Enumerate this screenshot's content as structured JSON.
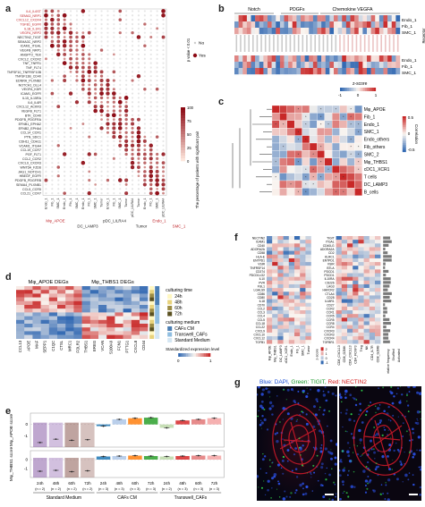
{
  "panels": {
    "a": "a",
    "b": "b",
    "c": "c",
    "d": "d",
    "e": "e",
    "f": "f",
    "g": "g"
  },
  "panel_a": {
    "pairs_red": [
      "IL6_IL6ST",
      "SEMA3_NRP1",
      "CXCL12_CXCR4",
      "TGFB1_EGFR",
      "IL1B_IL1R1",
      "VEGFA_NRP2"
    ],
    "pairs_black": [
      "NECTIN2_TIGIT",
      "SEMA3C_NRP2",
      "ICAM1_ITGAL",
      "VEGFB_NRP1",
      "ANGPT2_TEK",
      "CXCL2_CXCR2",
      "TNF_TNFR1",
      "TNF_FLT4",
      "TNFSF10_TNFRSF10B",
      "TNFSF13B_CD40",
      "EDNRA_PLXNB2",
      "NOTCH1_DLL4",
      "VEGFA_KDR",
      "ICAM1_EGFR",
      "IL15_IL15RA",
      "IL6_IL6R",
      "CXCL12_ACKR3",
      "VEGFB_FLT1",
      "BTK_CD40",
      "PDGFB_PDGFRA",
      "EFNB1_EPHA2",
      "EFNB2_EPHA4",
      "CCL14_CCR1",
      "PTN_SDC1",
      "CDH11_CDH11",
      "VCAM1_ITGA4",
      "CCL19_CCR7",
      "PGF_FLT1",
      "CCL2_CCR2",
      "CXCL9_CXCR3",
      "WNT5A_FZD6",
      "JAG1_NOTCH1",
      "HBEGF_EGFR",
      "PDGFB_PDGFRB",
      "SEMA4_PLXNB1",
      "CCL5_CCR5",
      "CCL21_CCR7"
    ],
    "xlabels": [
      "Endo_1",
      "Fib_1",
      "SMC_1",
      "Endo_1",
      "Fib_1",
      "SMC_1",
      "Endo_1",
      "Fib_1",
      "SMC_1",
      "Tumor",
      "Endo_1",
      "Fib_1",
      "SMC_1",
      "Tumor",
      "pDC_LILRA4",
      "Tumor",
      "Endo_1",
      "Fib_1",
      "SMC_1",
      "pDC_LILRA4"
    ],
    "groups": [
      "Mφ_APOE",
      "DC_LAMP3",
      "pDC_LILRA4",
      "Tumor",
      "Endo_1",
      "SMC_1"
    ],
    "colorbar_label": "The percentage of patients with significant pair",
    "colorbar_ticks": [
      "100",
      "75",
      "50",
      "25",
      "0"
    ],
    "pvalue_label": "p value < 0.01",
    "legend": [
      "No",
      "Yes"
    ]
  },
  "panel_b": {
    "groups": [
      "Notch",
      "PDGFs",
      "Chemokine VEGFA"
    ],
    "rows": [
      "Endo_1",
      "Fib_1",
      "SMC_1"
    ],
    "side_labels": [
      "Receptor",
      "Ligand"
    ],
    "zscore_label": "z-score",
    "zscore_ticks": [
      "-1",
      "0",
      "1"
    ]
  },
  "panel_c": {
    "rows": [
      "Mφ_APOE",
      "Fib_1",
      "Endo_1",
      "SMC_1",
      "Endo_others",
      "Fib_others",
      "SMC_2",
      "Mφ_THBS1",
      "cDC1_XCR1",
      "T cells",
      "DC_LAMP3",
      "B_cells"
    ],
    "colorbar_label": "Correlation",
    "colorbar_ticks": [
      "0.5",
      "0",
      "-0.5"
    ]
  },
  "panel_d": {
    "title_left": "Mφ_APOE DEGs",
    "title_right": "Mφ_THBS1 DEGs",
    "genes": [
      "CCL13",
      "APOE",
      "MAF",
      "SEPP1",
      "C1QC",
      "CTSL",
      "MRC1",
      "FOLR2",
      "THBS1",
      "EREG",
      "VCAN",
      "S100A9",
      "FCN1",
      "PTTG1",
      "CXCL8",
      "CD44"
    ],
    "legend_time_title": "culturing time",
    "legend_time": [
      "24h",
      "48h",
      "60h",
      "72h"
    ],
    "legend_time_colors": [
      "#fff7c0",
      "#e8d27a",
      "#9c8c44",
      "#5a5020"
    ],
    "legend_medium_title": "culturing medium",
    "legend_medium": [
      "CAFs CM",
      "Transwell_CAFs",
      "Standard Medium"
    ],
    "legend_medium_colors": [
      "#4a7eb4",
      "#8fbde0",
      "#d4e6f3"
    ],
    "scale_label": "Standardized expression level",
    "scale_ticks": [
      "0",
      "1"
    ]
  },
  "panel_e": {
    "ylabel_top": "Mφ_APOE score",
    "ylabel_bottom": "Mφ_THBS1 score",
    "yticks_top": [
      "0",
      "-1"
    ],
    "yticks_bottom": [
      "0",
      "-1"
    ],
    "times": [
      "24h",
      "48h",
      "60h",
      "72h",
      "24h",
      "48h",
      "60h",
      "72h",
      "24h",
      "48h",
      "60h",
      "72h"
    ],
    "ns": [
      "(n = 2)",
      "(n = 2)",
      "(n = 2)",
      "(n = 2)",
      "(n = 3)",
      "(n = 3)",
      "(n = 3)",
      "(n = 3)",
      "(n = 2)",
      "(n = 3)",
      "(n = 3)",
      "(n = 3)"
    ],
    "groups": [
      "Standard Medium",
      "CAFs CM",
      "Transwell_CAFs"
    ],
    "colors": [
      "#8b5ea8",
      "#ad8cc4",
      "#8a5a52",
      "#b58f8a",
      "#1f77b4",
      "#aec7e8",
      "#ff7f0e",
      "#2ca02c",
      "#bcd8a8",
      "#d62728",
      "#e37777",
      "#f4a3a3"
    ],
    "chart_data": {
      "type": "bar",
      "categories": [
        "SM 24h",
        "SM 48h",
        "SM 60h",
        "SM 72h",
        "CM 24h",
        "CM 48h",
        "CM 60h",
        "CM 72h",
        "TW 24h",
        "TW 48h",
        "TW 60h",
        "TW 72h"
      ],
      "series": [
        {
          "name": "Mφ_APOE score",
          "values": [
            -1.6,
            -1.3,
            -1.4,
            -1.35,
            -0.15,
            0.45,
            0.55,
            0.6,
            -0.3,
            0.35,
            0.45,
            0.55
          ]
        },
        {
          "name": "Mφ_THBS1 score",
          "values": [
            -1.3,
            -1.2,
            -1.35,
            -1.25,
            0.35,
            0.4,
            0.45,
            0.4,
            0.35,
            0.4,
            0.45,
            0.45
          ]
        }
      ],
      "ylim": [
        -2,
        1
      ]
    }
  },
  "panel_f": {
    "left_genes": [
      "NECTIN2",
      "ICAM1",
      "CD40",
      "ADORA2A",
      "CD58",
      "HLA-E",
      "ENTPD1",
      "VSIR",
      "TNFRSF14",
      "CD274",
      "PDCD1LG2",
      "IL10",
      "PVR",
      "FGL1",
      "LGALS9",
      "CD86",
      "CD80",
      "IL18",
      "CD70",
      "CCL2",
      "CCL3",
      "CCL4",
      "CCL5",
      "CCL18",
      "CCL22",
      "CXCL9",
      "CXCL10",
      "CXCL12",
      "TGFB1"
    ],
    "right_genes": [
      "TIGIT",
      "ITGAL",
      "CD40LG",
      "ADORA2A",
      "CD2",
      "KLRC1",
      "ENTPD1",
      "VSIR",
      "BTLA",
      "PDCD1",
      "PDCD1",
      "IL10RA",
      "CD226",
      "LAG3",
      "HAVCR2",
      "CTLA4",
      "CD28",
      "IL18R1",
      "CD27",
      "CCR2",
      "CCR1",
      "CCR5",
      "CCR5",
      "CCR8",
      "CCR4",
      "CXCR3",
      "CXCR3",
      "CXCR4",
      "TGFBR1"
    ],
    "left_cols": [
      "Mφ_APOE",
      "Mφ_THBS1",
      "DC_LAMP3",
      "cDC1_XCR1",
      "Endo_1",
      "Fib_1",
      "SMC_1",
      "Tumor"
    ],
    "right_cols": [
      "CD8_CXCL13",
      "CD8_GZMK",
      "CD4_CXCL13",
      "CD4_FOXP3",
      "Treg",
      "NK",
      "CD4_IL7R",
      "CD8_GZMB"
    ],
    "legend_title": "z-score",
    "legend_ticks": [
      "2",
      "1",
      "0",
      "-1"
    ],
    "legend_right_title": "Relative frequency",
    "legend_right": [
      "Shuffled",
      "Activated"
    ]
  },
  "panel_g": {
    "title_blue": "Blue: DAPI,",
    "title_green": "Green: TIGIT,",
    "title_red": "Red: NECTIN2"
  }
}
